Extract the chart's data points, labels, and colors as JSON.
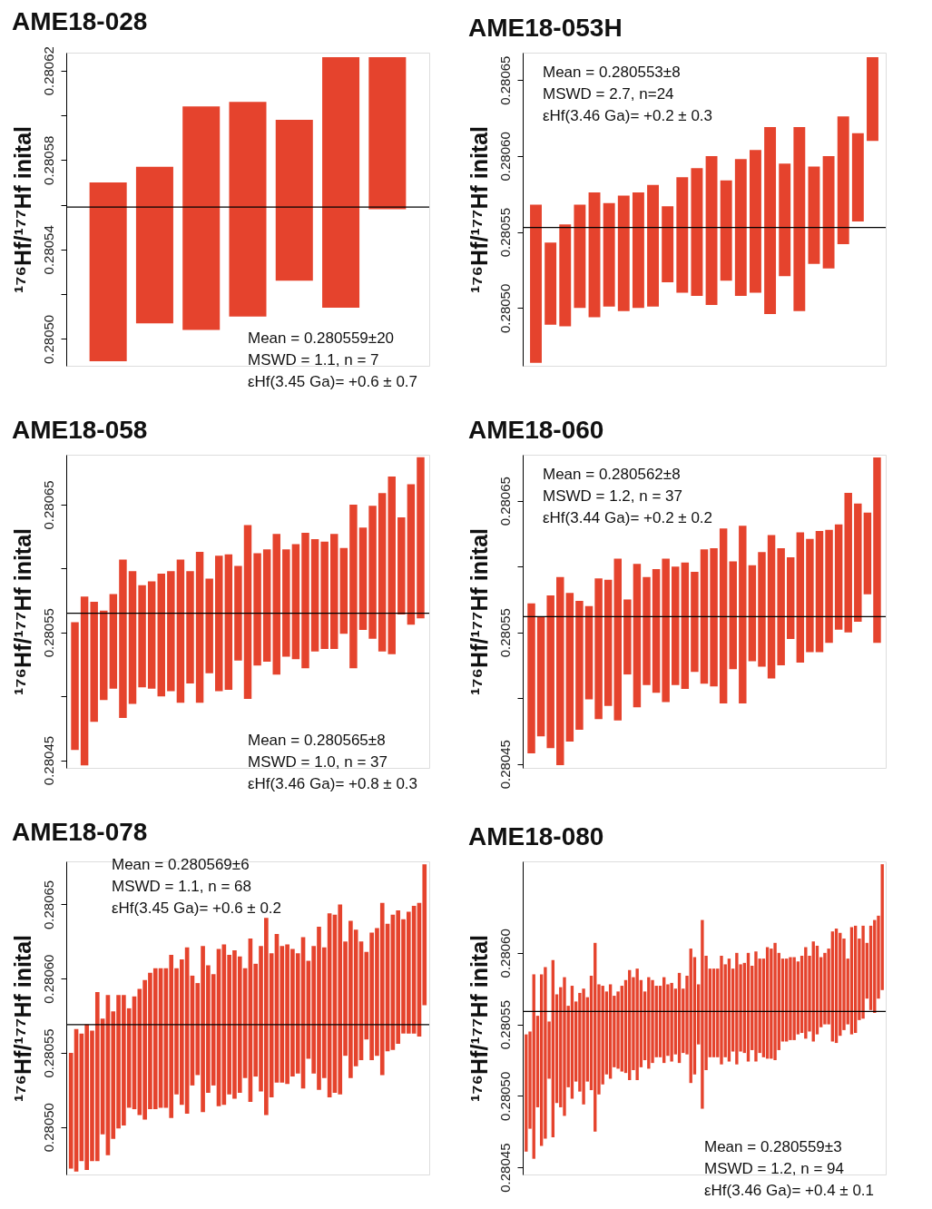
{
  "chart_data": [
    {
      "type": "bar",
      "title": "AME18-028",
      "ylabel": "¹⁷⁶Hf/¹⁷⁷Hf  inital",
      "color": "#e5432d",
      "tick_labels": "y",
      "categories": [
        null,
        null,
        null,
        null,
        null,
        null,
        null
      ],
      "base": [
        0.28049,
        0.280507,
        0.280504,
        0.28051,
        0.280526,
        0.280514,
        0.280558
      ],
      "values": [
        8e-05,
        7e-05,
        0.0001,
        9.6e-05,
        7.2e-05,
        0.000112,
        6.8e-05
      ],
      "ylim": [
        0.280488,
        0.280628
      ],
      "yticks": [
        0.28062,
        {
          "value": 0.2806,
          "label": null
        },
        0.28058,
        {
          "value": 0.28056,
          "label": null
        },
        0.28054,
        {
          "value": 0.28052,
          "label": null
        },
        {
          "value": 0.2805,
          "label": "0.28050"
        }
      ],
      "ref_lines": [
        {
          "axis": "y",
          "value": 0.280559,
          "color": "#000000"
        }
      ],
      "annotations": [
        "Mean = 0.280559±20",
        "MSWD = 1.1, n = 7",
        "εHf(3.45 Ga)= +0.6 ± 0.7"
      ]
    },
    {
      "type": "bar",
      "title": "AME18-053H",
      "ylabel": "¹⁷⁶Hf/¹⁷⁷Hf  inital",
      "color": "#e5432d",
      "tick_labels": "y",
      "categories": [
        null,
        null,
        null,
        null,
        null,
        null,
        null,
        null,
        null,
        null,
        null,
        null,
        null,
        null,
        null,
        null,
        null,
        null,
        null,
        null,
        null,
        null,
        null,
        null
      ],
      "base": [
        0.280464,
        0.280489,
        0.280488,
        0.2805,
        0.280494,
        0.280501,
        0.280498,
        0.2805,
        0.280501,
        0.280517,
        0.28051,
        0.280508,
        0.280502,
        0.280518,
        0.280508,
        0.28051,
        0.280496,
        0.280521,
        0.280498,
        0.280529,
        0.280526,
        0.280542,
        0.280557,
        0.28061
      ],
      "values": [
        0.000104,
        5.4e-05,
        6.7e-05,
        6.8e-05,
        8.2e-05,
        6.8e-05,
        7.6e-05,
        7.6e-05,
        8e-05,
        5e-05,
        7.6e-05,
        8.4e-05,
        9.8e-05,
        6.6e-05,
        9e-05,
        9.4e-05,
        0.000123,
        7.4e-05,
        0.000121,
        6.4e-05,
        7.4e-05,
        8.4e-05,
        5.8e-05,
        5.5e-05
      ],
      "ylim": [
        0.280462,
        0.280668
      ],
      "yticks": [
        {
          "value": 0.2805,
          "label": "0.28050"
        },
        0.28055,
        {
          "value": 0.2806,
          "label": "0.28060"
        },
        0.28065
      ],
      "ref_lines": [
        {
          "axis": "y",
          "value": 0.280553,
          "color": "#000000"
        }
      ],
      "annotations": [
        "Mean = 0.280553±8",
        "MSWD = 2.7, n=24",
        "εHf(3.46 Ga)= +0.2 ± 0.3"
      ]
    },
    {
      "type": "bar",
      "title": "AME18-058",
      "ylabel": "¹⁷⁶Hf/¹⁷⁷Hf  inital",
      "color": "#e5432d",
      "tick_labels": "y",
      "categories": [
        null,
        null,
        null,
        null,
        null,
        null,
        null,
        null,
        null,
        null,
        null,
        null,
        null,
        null,
        null,
        null,
        null,
        null,
        null,
        null,
        null,
        null,
        null,
        null,
        null,
        null,
        null,
        null,
        null,
        null,
        null,
        null,
        null,
        null,
        null,
        null,
        null
      ],
      "base": [
        0.280458,
        0.280446,
        0.28048,
        0.280497,
        0.280506,
        0.280483,
        0.280494,
        0.280507,
        0.280506,
        0.2805,
        0.280504,
        0.280495,
        0.28051,
        0.280495,
        0.280518,
        0.280504,
        0.280505,
        0.280528,
        0.280498,
        0.280524,
        0.280527,
        0.280517,
        0.280531,
        0.280529,
        0.280522,
        0.280535,
        0.280537,
        0.280537,
        0.280549,
        0.280522,
        0.280552,
        0.280545,
        0.280535,
        0.280533,
        0.280564,
        0.280556,
        0.280561
      ],
      "values": [
        0.0001,
        0.000132,
        9.4e-05,
        7e-05,
        7.4e-05,
        0.000124,
        0.000104,
        8e-05,
        8.4e-05,
        9.6e-05,
        9.4e-05,
        0.000112,
        8.8e-05,
        0.000118,
        7.4e-05,
        0.000106,
        0.000106,
        7.4e-05,
        0.000136,
        8.8e-05,
        8.8e-05,
        0.00011,
        8.4e-05,
        9e-05,
        0.000106,
        8.8e-05,
        8.4e-05,
        9e-05,
        6.7e-05,
        0.000128,
        8e-05,
        0.000104,
        0.000124,
        0.000139,
        7.6e-05,
        0.00011,
        0.000126
      ],
      "ylim": [
        0.280444,
        0.280689
      ],
      "yticks": [
        0.28045,
        {
          "value": 0.2805,
          "label": null
        },
        0.28055,
        {
          "value": 0.2806,
          "label": null
        },
        0.28065
      ],
      "ref_lines": [
        {
          "axis": "y",
          "value": 0.280565,
          "color": "#000000"
        }
      ],
      "annotations": [
        "Mean = 0.280565±8",
        "MSWD = 1.0, n = 37",
        "εHf(3.46 Ga)= +0.8 ± 0.3"
      ]
    },
    {
      "type": "bar",
      "title": "AME18-060",
      "ylabel": "¹⁷⁶Hf/¹⁷⁷Hf  inital",
      "color": "#e5432d",
      "tick_labels": "y",
      "categories": [
        null,
        null,
        null,
        null,
        null,
        null,
        null,
        null,
        null,
        null,
        null,
        null,
        null,
        null,
        null,
        null,
        null,
        null,
        null,
        null,
        null,
        null,
        null,
        null,
        null,
        null,
        null,
        null,
        null,
        null,
        null,
        null,
        null,
        null,
        null,
        null,
        null
      ],
      "base": [
        0.280458,
        0.280471,
        0.280462,
        0.280449,
        0.280467,
        0.280476,
        0.280499,
        0.280484,
        0.280494,
        0.280483,
        0.280518,
        0.280493,
        0.28051,
        0.280504,
        0.280497,
        0.28051,
        0.280507,
        0.28052,
        0.280511,
        0.280509,
        0.280496,
        0.280522,
        0.280496,
        0.280528,
        0.280524,
        0.280515,
        0.280525,
        0.280545,
        0.280527,
        0.280535,
        0.280535,
        0.280542,
        0.280552,
        0.28055,
        0.280558,
        0.280579,
        0.280542
      ],
      "values": [
        0.000114,
        9.1e-05,
        0.000116,
        0.000143,
        0.000113,
        9.8e-05,
        7.1e-05,
        0.000107,
        9.6e-05,
        0.000123,
        5.7e-05,
        0.000109,
        8.2e-05,
        9.4e-05,
        0.000109,
        9e-05,
        9.6e-05,
        7.6e-05,
        0.000102,
        0.000105,
        0.000133,
        8.2e-05,
        0.000135,
        7.3e-05,
        8.7e-05,
        0.000109,
        8.9e-05,
        6.2e-05,
        9.9e-05,
        8.6e-05,
        9.2e-05,
        8.6e-05,
        8e-05,
        0.000106,
        9e-05,
        6.2e-05,
        0.000141
      ],
      "ylim": [
        0.280447,
        0.280685
      ],
      "yticks": [
        0.28045,
        {
          "value": 0.2805,
          "label": null
        },
        0.28055,
        {
          "value": 0.2806,
          "label": null
        },
        0.28065
      ],
      "ref_lines": [
        {
          "axis": "y",
          "value": 0.280562,
          "color": "#000000"
        }
      ],
      "annotations": [
        "Mean = 0.280562±8",
        "MSWD = 1.2, n = 37",
        "εHf(3.44 Ga)= +0.2 ± 0.2"
      ]
    },
    {
      "type": "bar",
      "title": "AME18-078",
      "ylabel": "¹⁷⁶Hf/¹⁷⁷Hf  inital",
      "color": "#e5432d",
      "tick_labels": "y",
      "categories": [
        null,
        null,
        null,
        null,
        null,
        null,
        null,
        null,
        null,
        null,
        null,
        null,
        null,
        null,
        null,
        null,
        null,
        null,
        null,
        null,
        null,
        null,
        null,
        null,
        null,
        null,
        null,
        null,
        null,
        null,
        null,
        null,
        null,
        null,
        null,
        null,
        null,
        null,
        null,
        null,
        null,
        null,
        null,
        null,
        null,
        null,
        null,
        null,
        null,
        null,
        null,
        null,
        null,
        null,
        null,
        null,
        null,
        null,
        null,
        null,
        null,
        null,
        null,
        null,
        null,
        null,
        null,
        null
      ],
      "base": [
        0.280472,
        0.28047,
        0.280477,
        0.280471,
        0.280477,
        0.280477,
        0.280495,
        0.280481,
        0.280492,
        0.280499,
        0.280501,
        0.280513,
        0.280512,
        0.280508,
        0.280505,
        0.280512,
        0.280512,
        0.280513,
        0.280513,
        0.280506,
        0.280522,
        0.280515,
        0.280509,
        0.280528,
        0.280535,
        0.28051,
        0.280523,
        0.280528,
        0.280514,
        0.280515,
        0.280522,
        0.280519,
        0.280523,
        0.280533,
        0.280517,
        0.280534,
        0.280524,
        0.280508,
        0.28052,
        0.28053,
        0.28053,
        0.280529,
        0.280534,
        0.280536,
        0.280526,
        0.280546,
        0.280536,
        0.280525,
        0.280533,
        0.28052,
        0.280523,
        0.280522,
        0.280548,
        0.280533,
        0.280541,
        0.280545,
        0.280559,
        0.280545,
        0.280548,
        0.280535,
        0.280551,
        0.280552,
        0.280556,
        0.280563,
        0.280563,
        0.280563,
        0.280561,
        0.280582
      ],
      "values": [
        7.8e-05,
        9.6e-05,
        8.6e-05,
        9.8e-05,
        8.8e-05,
        0.000114,
        7.8e-05,
        0.000108,
        8.6e-05,
        9e-05,
        8.8e-05,
        6.7e-05,
        7.6e-05,
        8.5e-05,
        9.4e-05,
        9.2e-05,
        9.5e-05,
        9.4e-05,
        9.4e-05,
        0.00011,
        8.5e-05,
        9.8e-05,
        0.000112,
        7.4e-05,
        6.2e-05,
        0.000112,
        8.6e-05,
        7.5e-05,
        0.000106,
        0.000108,
        9.4e-05,
        0.0001,
        9.2e-05,
        7.4e-05,
        0.00011,
        7.6e-05,
        9.8e-05,
        0.000133,
        9.7e-05,
        0.0001,
        9.2e-05,
        9.4e-05,
        8.6e-05,
        8.1e-05,
        0.000102,
        6.6e-05,
        8.6e-05,
        0.00011,
        8.8e-05,
        0.000124,
        0.00012,
        0.000128,
        7.7e-05,
        0.000106,
        9.2e-05,
        8e-05,
        5.9e-05,
        8.6e-05,
        8.6e-05,
        0.000116,
        8.6e-05,
        9.1e-05,
        9e-05,
        7.7e-05,
        8.2e-05,
        8.6e-05,
        9e-05,
        9.5e-05
      ],
      "ylim": [
        0.280468,
        0.280679
      ],
      "yticks": [
        {
          "value": 0.2805,
          "label": "0.28050"
        },
        0.28055,
        {
          "value": 0.2806,
          "label": "0.28060"
        },
        0.28065
      ],
      "ref_lines": [
        {
          "axis": "y",
          "value": 0.280569,
          "color": "#000000"
        }
      ],
      "annotations": [
        "Mean = 0.280569±6",
        "MSWD = 1.1, n = 68",
        "εHf(3.45 Ga)= +0.6 ± 0.2"
      ]
    },
    {
      "type": "bar",
      "title": "AME18-080",
      "ylabel": "¹⁷⁶Hf/¹⁷⁷Hf  inital",
      "color": "#e5432d",
      "tick_labels": "y",
      "categories": [
        null,
        null,
        null,
        null,
        null,
        null,
        null,
        null,
        null,
        null,
        null,
        null,
        null,
        null,
        null,
        null,
        null,
        null,
        null,
        null,
        null,
        null,
        null,
        null,
        null,
        null,
        null,
        null,
        null,
        null,
        null,
        null,
        null,
        null,
        null,
        null,
        null,
        null,
        null,
        null,
        null,
        null,
        null,
        null,
        null,
        null,
        null,
        null,
        null,
        null,
        null,
        null,
        null,
        null,
        null,
        null,
        null,
        null,
        null,
        null,
        null,
        null,
        null,
        null,
        null,
        null,
        null,
        null,
        null,
        null,
        null,
        null,
        null,
        null,
        null,
        null,
        null,
        null,
        null,
        null,
        null,
        null,
        null,
        null,
        null,
        null,
        null,
        null,
        null,
        null,
        null,
        null,
        null,
        null
      ],
      "base": [
        0.280461,
        0.280477,
        0.280456,
        0.280492,
        0.280465,
        0.28047,
        0.280512,
        0.280471,
        0.280495,
        0.280492,
        0.280486,
        0.280506,
        0.280498,
        0.28051,
        0.280503,
        0.280494,
        0.28051,
        0.280504,
        0.280475,
        0.280501,
        0.280508,
        0.280515,
        0.280512,
        0.28052,
        0.280519,
        0.280517,
        0.280516,
        0.280511,
        0.280518,
        0.280511,
        0.28052,
        0.280525,
        0.280519,
        0.280523,
        0.280527,
        0.280527,
        0.280523,
        0.280528,
        0.280524,
        0.280529,
        0.280523,
        0.28053,
        0.280529,
        0.280509,
        0.280515,
        0.280536,
        0.280491,
        0.280518,
        0.280527,
        0.280527,
        0.280527,
        0.280522,
        0.280527,
        0.280524,
        0.280531,
        0.280522,
        0.280531,
        0.28053,
        0.280524,
        0.280532,
        0.280524,
        0.28053,
        0.280527,
        0.280526,
        0.280526,
        0.280525,
        0.280532,
        0.280538,
        0.280538,
        0.280539,
        0.280539,
        0.280543,
        0.280544,
        0.28054,
        0.280545,
        0.280538,
        0.280543,
        0.280548,
        0.28055,
        0.28055,
        0.280538,
        0.280537,
        0.280542,
        0.280546,
        0.28055,
        0.280543,
        0.280544,
        0.280553,
        0.280554,
        0.280568,
        0.28056,
        0.280558,
        0.280568,
        0.280574
      ],
      "values": [
        8.2e-05,
        6.8e-05,
        0.000129,
        6.4e-05,
        0.00012,
        0.00012,
        4e-05,
        0.000124,
        7.6e-05,
        8.4e-05,
        9.7e-05,
        5.7e-05,
        7.9e-05,
        5.6e-05,
        6.9e-05,
        8.1e-05,
        5.9e-05,
        8e-05,
        0.000132,
        7.7e-05,
        6.9e-05,
        5.8e-05,
        6.6e-05,
        5e-05,
        5.4e-05,
        6e-05,
        6.5e-05,
        7.7e-05,
        6.5e-05,
        7.8e-05,
        6.1e-05,
        4.8e-05,
        6.4e-05,
        5.8e-05,
        5e-05,
        5e-05,
        6e-05,
        5e-05,
        5.5e-05,
        4.6e-05,
        6.3e-05,
        4.5e-05,
        5.5e-05,
        9.4e-05,
        8.2e-05,
        4.2e-05,
        0.000132,
        8e-05,
        6.2e-05,
        6.2e-05,
        6.2e-05,
        7.6e-05,
        6.5e-05,
        7.2e-05,
        5.8e-05,
        7.8e-05,
        6.1e-05,
        6.3e-05,
        7.6e-05,
        5.9e-05,
        7.7e-05,
        6.6e-05,
        6.9e-05,
        7.8e-05,
        7.7e-05,
        8.2e-05,
        6.8e-05,
        5.8e-05,
        5.8e-05,
        5.8e-05,
        5.8e-05,
        5.1e-05,
        5.4e-05,
        6.4e-05,
        5.3e-05,
        7e-05,
        6.2e-05,
        4.9e-05,
        5e-05,
        5.3e-05,
        7.7e-05,
        8e-05,
        7.2e-05,
        6.4e-05,
        4.6e-05,
        7.5e-05,
        7.5e-05,
        5.7e-05,
        6.5e-05,
        3.9e-05,
        5.9e-05,
        6.5e-05,
        5.8e-05,
        8.8e-05
      ],
      "ylim": [
        0.280445,
        0.280664
      ],
      "yticks": [
        0.28045,
        {
          "value": 0.2805,
          "label": "0.28050"
        },
        0.28055,
        {
          "value": 0.2806,
          "label": "0.28060"
        }
      ],
      "ref_lines": [
        {
          "axis": "y",
          "value": 0.280559,
          "color": "#000000"
        }
      ],
      "annotations": [
        "Mean = 0.280559±3",
        "MSWD = 1.2, n = 94",
        "εHf(3.46 Ga)= +0.4 ± 0.1"
      ]
    }
  ]
}
